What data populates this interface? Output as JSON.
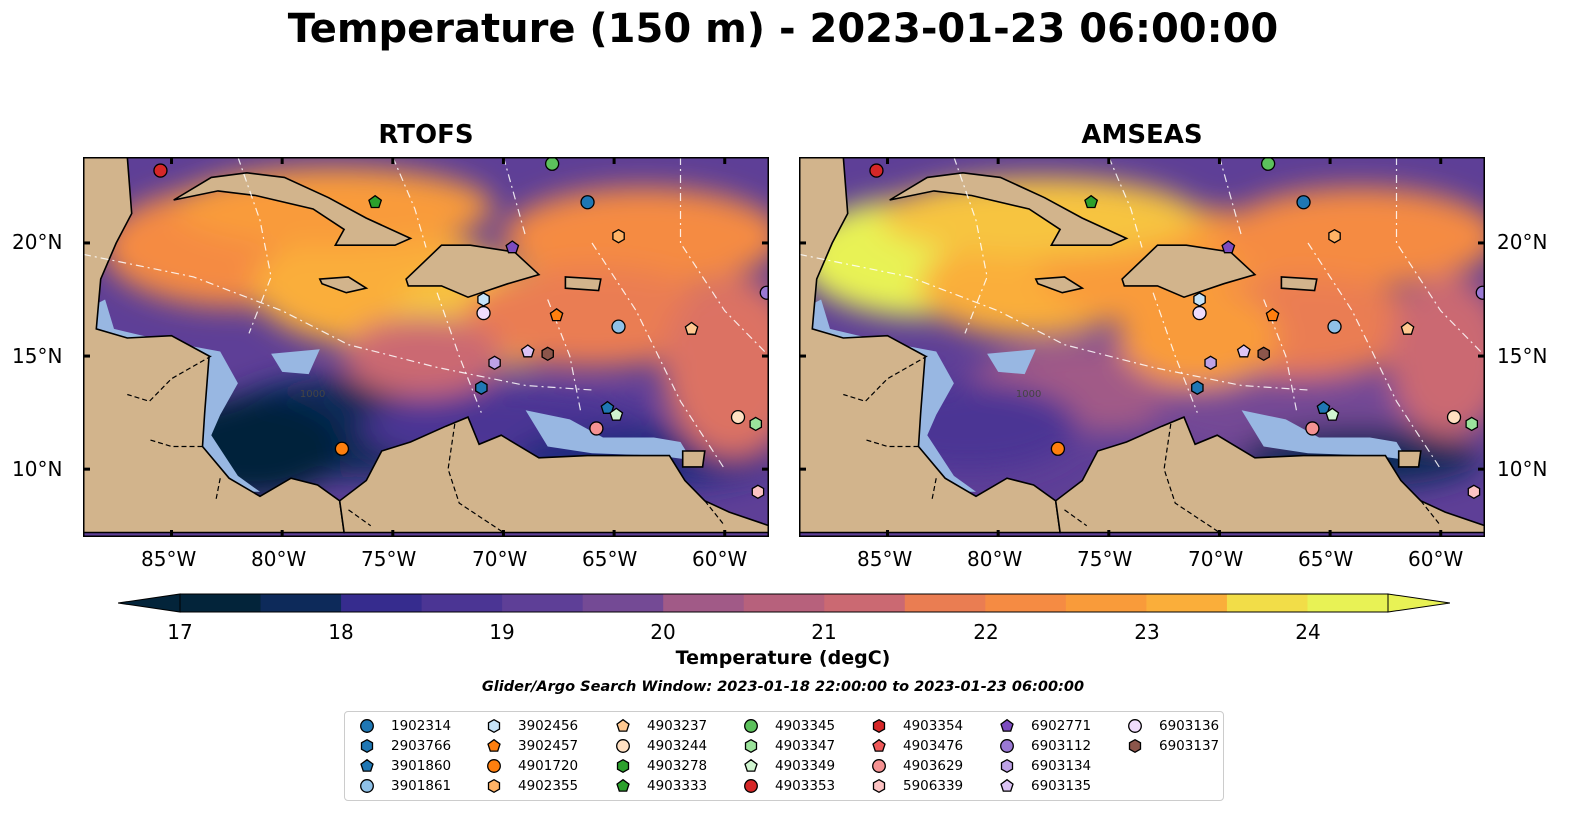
{
  "title": "Temperature (150 m) - 2023-01-23 06:00:00",
  "panels": [
    {
      "title": "RTOFS",
      "theme": "rtofs"
    },
    {
      "title": "AMSEAS",
      "theme": "amseas"
    }
  ],
  "contour_label": "1000",
  "lon_ticks": [
    "85°W",
    "80°W",
    "75°W",
    "70°W",
    "65°W",
    "60°W"
  ],
  "lat_ticks": [
    "20°N",
    "15°N",
    "10°N"
  ],
  "colorbar": {
    "label": "Temperature (degC)",
    "ticks": [
      "17",
      "18",
      "19",
      "20",
      "21",
      "22",
      "23",
      "24"
    ],
    "min": 17,
    "max": 24,
    "colors": [
      "#03243a",
      "#0d2a5a",
      "#1f2b7e",
      "#362c8e",
      "#4b3594",
      "#5e3f97",
      "#744a95",
      "#8a5390",
      "#a15a87",
      "#b7617c",
      "#cb6972",
      "#dc7263",
      "#ea7d52",
      "#f58b43",
      "#f99b3a",
      "#faae3a",
      "#f7c43f",
      "#f2dd48",
      "#e8f255"
    ],
    "land": "#d2b48c",
    "shallow": "#98b7e2"
  },
  "search_window": "Glider/Argo Search Window: 2023-01-18 22:00:00 to 2023-01-23 06:00:00",
  "legend": [
    {
      "id": "1902314",
      "color": "#1f77b4",
      "marker": "circle"
    },
    {
      "id": "2903766",
      "color": "#1f77b4",
      "marker": "hexagon"
    },
    {
      "id": "3901860",
      "color": "#1f77b4",
      "marker": "pentagon"
    },
    {
      "id": "3901861",
      "color": "#8fc1e8",
      "marker": "circle"
    },
    {
      "id": "3902456",
      "color": "#c6e3f8",
      "marker": "hexagon"
    },
    {
      "id": "3902457",
      "color": "#ff7f0e",
      "marker": "pentagon"
    },
    {
      "id": "4901720",
      "color": "#ff7f0e",
      "marker": "circle"
    },
    {
      "id": "4902355",
      "color": "#ffb366",
      "marker": "hexagon"
    },
    {
      "id": "4903237",
      "color": "#ffc891",
      "marker": "pentagon"
    },
    {
      "id": "4903244",
      "color": "#ffe0c2",
      "marker": "circle"
    },
    {
      "id": "4903278",
      "color": "#2ca02c",
      "marker": "hexagon"
    },
    {
      "id": "4903333",
      "color": "#2ca02c",
      "marker": "pentagon"
    },
    {
      "id": "4903345",
      "color": "#5cc15c",
      "marker": "circle"
    },
    {
      "id": "4903347",
      "color": "#9be39b",
      "marker": "hexagon"
    },
    {
      "id": "4903349",
      "color": "#d0f5d0",
      "marker": "pentagon"
    },
    {
      "id": "4903353",
      "color": "#d62728",
      "marker": "circle"
    },
    {
      "id": "4903354",
      "color": "#d62728",
      "marker": "hexagon"
    },
    {
      "id": "4903476",
      "color": "#ef5a5a",
      "marker": "pentagon"
    },
    {
      "id": "4903629",
      "color": "#f59292",
      "marker": "circle"
    },
    {
      "id": "5906339",
      "color": "#fcc3c3",
      "marker": "hexagon"
    },
    {
      "id": "6902771",
      "color": "#7c4cc0",
      "marker": "pentagon"
    },
    {
      "id": "6903112",
      "color": "#9a79d4",
      "marker": "circle"
    },
    {
      "id": "6903134",
      "color": "#bea2e6",
      "marker": "hexagon"
    },
    {
      "id": "6903135",
      "color": "#dcc4f5",
      "marker": "pentagon"
    },
    {
      "id": "6903136",
      "color": "#efdcfc",
      "marker": "circle"
    },
    {
      "id": "6903137",
      "color": "#8c564b",
      "marker": "hexagon"
    }
  ]
}
